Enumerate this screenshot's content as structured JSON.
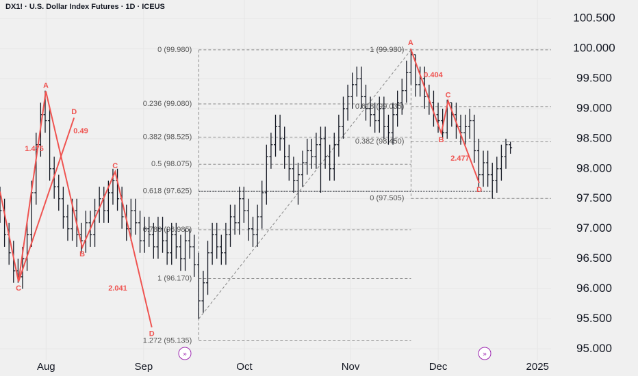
{
  "chart_data": {
    "type": "ohlc",
    "title": "DX1! · U.S. Dollar Index Futures · 1D · ICEUS",
    "x": [
      0,
      1,
      2,
      3,
      4,
      5,
      6,
      7,
      8,
      9,
      10,
      11,
      12,
      13,
      14,
      15,
      16,
      17,
      18,
      19,
      20,
      21,
      22,
      23,
      24,
      25,
      26,
      27,
      28,
      29,
      30,
      31,
      32,
      33,
      34,
      35,
      36,
      37,
      38,
      39,
      40,
      41,
      42,
      43,
      44,
      45,
      46,
      47,
      48,
      49,
      50,
      51,
      52,
      53,
      54,
      55,
      56,
      57,
      58,
      59,
      60,
      61,
      62,
      63,
      64,
      65,
      66,
      67,
      68,
      69,
      70,
      71,
      72,
      73,
      74,
      75,
      76,
      77,
      78,
      79,
      80,
      81,
      82,
      83,
      84,
      85,
      86,
      87,
      88,
      89,
      90,
      91,
      92,
      93,
      94,
      95,
      96,
      97,
      98,
      99,
      100,
      101,
      102,
      103,
      104,
      105,
      106,
      107,
      108,
      109,
      110,
      111,
      112,
      113
    ],
    "open": [
      97.5,
      97.3,
      96.9,
      96.6,
      96.3,
      96.2,
      96.5,
      96.9,
      97.6,
      98.4,
      98.9,
      98.8,
      98.0,
      97.7,
      97.5,
      97.2,
      97.0,
      97.3,
      96.9,
      96.8,
      97.1,
      96.9,
      97.3,
      97.5,
      97.3,
      97.6,
      97.8,
      97.5,
      97.2,
      97.0,
      97.3,
      97.1,
      96.8,
      97.0,
      96.9,
      96.7,
      97.0,
      96.8,
      96.6,
      96.9,
      96.7,
      96.5,
      96.8,
      96.7,
      96.4,
      95.8,
      96.1,
      96.6,
      96.9,
      96.7,
      96.6,
      96.9,
      97.2,
      97.1,
      97.5,
      97.3,
      97.0,
      96.9,
      97.2,
      97.6,
      98.2,
      98.4,
      98.7,
      98.5,
      98.2,
      98.0,
      97.8,
      97.9,
      98.1,
      98.3,
      98.2,
      98.4,
      98.5,
      98.2,
      98.0,
      98.4,
      98.7,
      99.0,
      99.2,
      99.4,
      99.5,
      99.2,
      99.0,
      98.9,
      98.8,
      99.0,
      98.7,
      98.6,
      98.9,
      99.1,
      99.3,
      99.6,
      99.9,
      99.4,
      99.5,
      99.2,
      99.1,
      98.9,
      98.8,
      98.6,
      99.1,
      98.9,
      98.7,
      98.6,
      98.7,
      98.8,
      98.3,
      97.9,
      98.1,
      97.9,
      97.8,
      98.0,
      98.2,
      98.4
    ],
    "high": [
      97.7,
      97.5,
      97.1,
      96.8,
      96.5,
      96.7,
      97.1,
      97.8,
      98.6,
      99.1,
      99.3,
      99.0,
      98.2,
      97.9,
      97.7,
      97.4,
      97.5,
      97.5,
      97.1,
      97.3,
      97.3,
      97.5,
      97.7,
      97.7,
      97.8,
      98.0,
      98.0,
      97.7,
      97.4,
      97.5,
      97.5,
      97.3,
      97.2,
      97.2,
      97.1,
      97.2,
      97.2,
      97.0,
      97.1,
      97.1,
      96.9,
      97.0,
      97.0,
      96.9,
      96.6,
      96.3,
      96.8,
      97.1,
      97.1,
      96.9,
      97.1,
      97.4,
      97.4,
      97.7,
      97.7,
      97.5,
      97.2,
      97.4,
      97.8,
      98.4,
      98.6,
      98.9,
      98.9,
      98.7,
      98.4,
      98.2,
      98.1,
      98.3,
      98.5,
      98.5,
      98.6,
      98.7,
      98.7,
      98.4,
      98.6,
      98.9,
      99.2,
      99.4,
      99.6,
      99.7,
      99.7,
      99.4,
      99.2,
      99.1,
      99.2,
      99.2,
      98.9,
      99.1,
      99.3,
      99.5,
      99.8,
      99.98,
      99.9,
      99.7,
      99.7,
      99.4,
      99.3,
      99.1,
      99.0,
      99.15,
      99.1,
      99.1,
      98.9,
      98.9,
      99.0,
      98.9,
      98.5,
      98.3,
      98.3,
      98.1,
      98.2,
      98.4,
      98.5,
      98.45
    ],
    "low": [
      97.1,
      96.7,
      96.4,
      96.1,
      96.1,
      96.0,
      96.3,
      96.7,
      97.4,
      98.2,
      98.6,
      97.8,
      97.5,
      97.3,
      97.0,
      96.8,
      96.8,
      96.7,
      96.6,
      96.6,
      96.7,
      96.7,
      97.1,
      97.1,
      97.1,
      97.4,
      97.3,
      97.0,
      96.8,
      96.8,
      96.9,
      96.6,
      96.6,
      96.7,
      96.5,
      96.5,
      96.6,
      96.4,
      96.4,
      96.5,
      96.3,
      96.3,
      96.5,
      96.2,
      95.5,
      95.6,
      95.9,
      96.4,
      96.5,
      96.4,
      96.4,
      96.7,
      96.9,
      96.9,
      97.1,
      96.8,
      96.7,
      96.7,
      97.0,
      97.4,
      98.0,
      98.2,
      98.3,
      98.0,
      97.8,
      97.6,
      97.4,
      97.7,
      97.9,
      98.0,
      98.0,
      97.6,
      98.0,
      97.8,
      97.8,
      98.2,
      98.5,
      98.8,
      99.0,
      99.2,
      99.0,
      98.8,
      98.7,
      98.6,
      98.6,
      98.5,
      98.4,
      98.4,
      98.7,
      98.9,
      99.1,
      99.4,
      99.2,
      99.2,
      99.0,
      98.9,
      98.7,
      98.6,
      98.5,
      98.5,
      98.7,
      98.5,
      98.4,
      98.4,
      98.5,
      98.1,
      97.7,
      97.7,
      97.7,
      97.5,
      97.6,
      97.8,
      98.0,
      98.25
    ],
    "close": [
      97.3,
      96.9,
      96.6,
      96.3,
      96.2,
      96.5,
      96.9,
      97.6,
      98.4,
      98.9,
      98.8,
      98.0,
      97.7,
      97.5,
      97.2,
      97.0,
      97.3,
      96.9,
      96.8,
      97.1,
      96.9,
      97.3,
      97.5,
      97.3,
      97.6,
      97.8,
      97.5,
      97.2,
      97.0,
      97.3,
      97.1,
      96.8,
      97.0,
      96.9,
      96.7,
      97.0,
      96.8,
      96.6,
      96.9,
      96.7,
      96.5,
      96.8,
      96.7,
      96.4,
      95.8,
      96.1,
      96.6,
      96.9,
      96.7,
      96.6,
      96.9,
      97.2,
      97.1,
      97.5,
      97.3,
      97.0,
      96.9,
      97.2,
      97.6,
      98.2,
      98.4,
      98.7,
      98.5,
      98.2,
      98.0,
      97.8,
      97.9,
      98.1,
      98.3,
      98.2,
      98.4,
      98.5,
      98.2,
      98.0,
      98.4,
      98.7,
      99.0,
      99.2,
      99.4,
      99.5,
      99.2,
      99.0,
      98.9,
      98.8,
      99.0,
      98.7,
      98.6,
      98.9,
      99.1,
      99.3,
      99.6,
      99.9,
      99.4,
      99.5,
      99.2,
      99.1,
      98.9,
      98.8,
      98.6,
      99.1,
      98.9,
      98.7,
      98.6,
      98.7,
      98.8,
      98.3,
      97.9,
      98.1,
      97.9,
      97.8,
      98.0,
      98.2,
      98.4,
      98.35
    ],
    "color": "#131722",
    "xlim": [
      0,
      122
    ],
    "xticks": [
      {
        "value": 10.2,
        "label": "Aug"
      },
      {
        "value": 31.8,
        "label": "Sep"
      },
      {
        "value": 54.1,
        "label": "Oct"
      },
      {
        "value": 77.6,
        "label": "Nov"
      },
      {
        "value": 97,
        "label": "Dec"
      },
      {
        "value": 119,
        "label": "2025"
      }
    ],
    "ylim": [
      94.81,
      100.81
    ],
    "yticks": [
      {
        "value": 95,
        "label": "95.000"
      },
      {
        "value": 95.5,
        "label": "95.500"
      },
      {
        "value": 96,
        "label": "96.000"
      },
      {
        "value": 96.5,
        "label": "96.500"
      },
      {
        "value": 97,
        "label": "97.000"
      },
      {
        "value": 97.5,
        "label": "97.500"
      },
      {
        "value": 98,
        "label": "98.000"
      },
      {
        "value": 98.5,
        "label": "98.500"
      },
      {
        "value": 99,
        "label": "99.000"
      },
      {
        "value": 99.5,
        "label": "99.500"
      },
      {
        "value": 100,
        "label": "100.000"
      },
      {
        "value": 100.5,
        "label": "100.500"
      }
    ],
    "grid": true,
    "fibs": [
      {
        "x_range": [
          44,
          91
        ],
        "levels": [
          {
            "label": "0 (99.980)",
            "price": 99.98
          },
          {
            "label": "0.236 (99.080)",
            "price": 99.08
          },
          {
            "label": "0.382 (98.525)",
            "price": 98.525
          },
          {
            "label": "0.5 (98.075)",
            "price": 98.075
          },
          {
            "label": "0.618 (97.625)",
            "price": 97.625
          },
          {
            "label": "0.786 (96.985)",
            "price": 96.985
          },
          {
            "label": "1 (96.170)",
            "price": 96.17
          },
          {
            "label": "1.272 (95.135)",
            "price": 95.135
          }
        ]
      },
      {
        "x_range": [
          91,
          122
        ],
        "levels": [
          {
            "label": "1 (99.980)",
            "price": 99.98
          },
          {
            "label": "0.618 (99.035)",
            "price": 99.035
          },
          {
            "label": "0.382 (98.450)",
            "price": 98.45
          },
          {
            "label": "0 (97.505)",
            "price": 97.505
          }
        ]
      }
    ],
    "patterns": [
      {
        "points": [
          {
            "x": 0,
            "price": 97.62
          },
          {
            "x": 4.1,
            "price": 96.12,
            "label": "C"
          },
          {
            "x": 10.15,
            "price": 99.29,
            "label": "A"
          },
          {
            "x": 18.2,
            "price": 96.69,
            "label": "B"
          },
          {
            "x": 25.5,
            "price": 97.95,
            "label": "C"
          },
          {
            "x": 33.6,
            "price": 95.36,
            "label": "D"
          }
        ],
        "ratios": [
          "1.475",
          "2.041"
        ]
      },
      {
        "points": [
          {
            "x": 4.1,
            "price": 96.12
          },
          {
            "x": 16.4,
            "price": 98.85,
            "label": "D"
          }
        ],
        "ratios": [
          "0.49"
        ]
      },
      {
        "points": [
          {
            "x": 90.9,
            "price": 100.0,
            "label": "A"
          },
          {
            "x": 97.7,
            "price": 98.59,
            "label": "B"
          },
          {
            "x": 99.2,
            "price": 99.13,
            "label": "C"
          },
          {
            "x": 106.1,
            "price": 97.76,
            "label": "D"
          }
        ],
        "ratios": [
          "0.404",
          "2.477"
        ]
      }
    ]
  }
}
